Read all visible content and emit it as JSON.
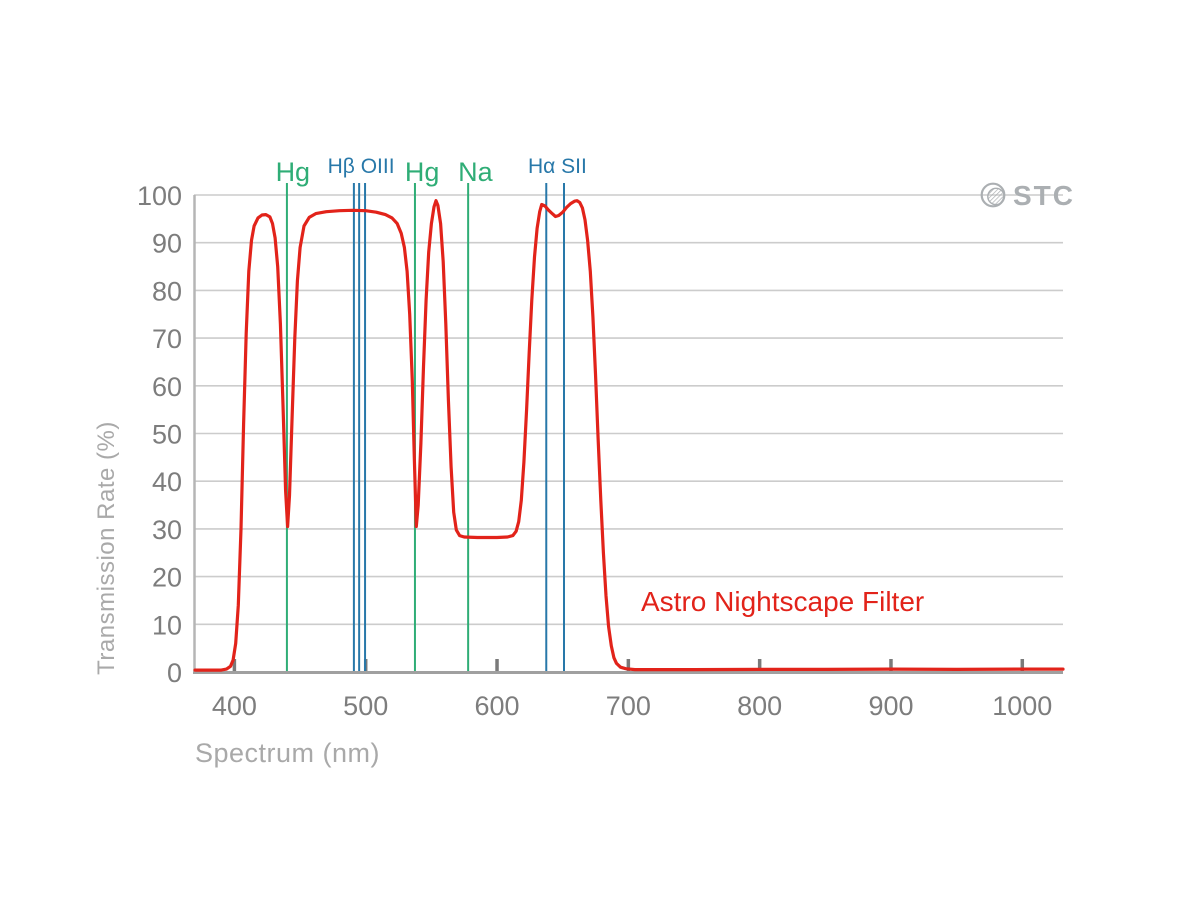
{
  "logo": {
    "text": "STC",
    "color": "#abafb2"
  },
  "annotation": {
    "text": "Astro Nightscape Filter",
    "color": "#e2231a"
  },
  "axis_style": {
    "grid_color": "#cccccc",
    "axis_line_color": "#a0a0a0",
    "tick_mark_color": "#7a7a7a",
    "tick_label_color": "#7d7d7d",
    "title_color": "#a9a9a9"
  },
  "chart_data": {
    "type": "line",
    "title": "",
    "xlabel": "Spectrum (nm)",
    "ylabel": "Transmission Rate (%)",
    "x_range": [
      370,
      1031
    ],
    "y_range": [
      0,
      100
    ],
    "x_ticks": [
      400,
      500,
      600,
      700,
      800,
      900,
      1000
    ],
    "y_ticks": [
      0,
      10,
      20,
      30,
      40,
      50,
      60,
      70,
      80,
      90,
      100
    ],
    "grid": "horizontal",
    "legend": "none",
    "series": [
      {
        "name": "Astro Nightscape Filter",
        "color": "#e2231a",
        "points": [
          [
            370,
            0.4
          ],
          [
            390,
            0.4
          ],
          [
            394,
            0.6
          ],
          [
            397,
            1.2
          ],
          [
            399,
            2.5
          ],
          [
            401,
            6
          ],
          [
            403,
            14
          ],
          [
            405,
            30
          ],
          [
            407,
            52
          ],
          [
            409,
            71
          ],
          [
            411,
            84
          ],
          [
            413,
            90.5
          ],
          [
            415,
            93.5
          ],
          [
            418,
            95.2
          ],
          [
            421,
            95.8
          ],
          [
            424,
            95.9
          ],
          [
            427,
            95.4
          ],
          [
            429,
            94
          ],
          [
            431,
            91
          ],
          [
            433,
            85
          ],
          [
            435,
            73
          ],
          [
            437,
            56
          ],
          [
            439,
            38
          ],
          [
            440.5,
            30.5
          ],
          [
            442,
            37
          ],
          [
            444,
            54
          ],
          [
            446,
            70
          ],
          [
            448,
            82
          ],
          [
            450,
            89
          ],
          [
            453,
            93.5
          ],
          [
            457,
            95.3
          ],
          [
            462,
            96.1
          ],
          [
            470,
            96.5
          ],
          [
            480,
            96.7
          ],
          [
            490,
            96.8
          ],
          [
            500,
            96.7
          ],
          [
            508,
            96.4
          ],
          [
            515,
            95.9
          ],
          [
            520,
            95.2
          ],
          [
            524,
            94
          ],
          [
            527,
            92
          ],
          [
            529.5,
            89
          ],
          [
            531.5,
            84
          ],
          [
            533.5,
            75
          ],
          [
            535.5,
            61
          ],
          [
            537,
            45
          ],
          [
            538.5,
            30.5
          ],
          [
            540,
            35
          ],
          [
            542,
            48
          ],
          [
            544,
            64
          ],
          [
            546,
            78
          ],
          [
            548,
            88
          ],
          [
            550,
            94
          ],
          [
            552,
            97.5
          ],
          [
            553.5,
            98.8
          ],
          [
            555,
            97.8
          ],
          [
            557,
            94
          ],
          [
            559,
            86
          ],
          [
            561,
            73
          ],
          [
            563,
            57
          ],
          [
            565,
            43
          ],
          [
            567,
            33.5
          ],
          [
            569,
            29.8
          ],
          [
            571.5,
            28.6
          ],
          [
            575,
            28.3
          ],
          [
            585,
            28.2
          ],
          [
            600,
            28.2
          ],
          [
            608,
            28.3
          ],
          [
            612,
            28.6
          ],
          [
            614.5,
            29.5
          ],
          [
            616.5,
            31.5
          ],
          [
            618.5,
            36
          ],
          [
            620.5,
            44
          ],
          [
            622.5,
            55
          ],
          [
            624.5,
            67
          ],
          [
            626.5,
            78
          ],
          [
            628.5,
            87
          ],
          [
            630.5,
            93
          ],
          [
            632.5,
            96.5
          ],
          [
            634,
            98
          ],
          [
            636.5,
            97.7
          ],
          [
            639,
            96.9
          ],
          [
            642,
            96.1
          ],
          [
            644.5,
            95.5
          ],
          [
            647,
            95.7
          ],
          [
            650,
            96.4
          ],
          [
            653,
            97.4
          ],
          [
            656,
            98.2
          ],
          [
            659,
            98.7
          ],
          [
            661,
            98.8
          ],
          [
            663,
            98.4
          ],
          [
            665,
            97.3
          ],
          [
            667,
            94.8
          ],
          [
            669,
            90.5
          ],
          [
            671,
            84
          ],
          [
            673,
            74.5
          ],
          [
            675,
            62.5
          ],
          [
            677,
            49
          ],
          [
            679,
            36
          ],
          [
            681,
            25
          ],
          [
            683,
            16
          ],
          [
            685,
            9.5
          ],
          [
            687,
            5.5
          ],
          [
            689,
            3
          ],
          [
            691,
            1.8
          ],
          [
            694,
            1
          ],
          [
            698,
            0.7
          ],
          [
            705,
            0.5
          ],
          [
            720,
            0.5
          ],
          [
            750,
            0.5
          ],
          [
            800,
            0.55
          ],
          [
            850,
            0.55
          ],
          [
            900,
            0.6
          ],
          [
            950,
            0.55
          ],
          [
            1000,
            0.6
          ],
          [
            1031,
            0.6
          ]
        ]
      }
    ],
    "spectral_lines": [
      {
        "label": "Hg",
        "nm": 440,
        "color": "#2fad76"
      },
      {
        "label": "Hβ",
        "nm": 491,
        "color": "#2878a9"
      },
      {
        "label": "OIII",
        "nm": 495,
        "color": "#2878a9"
      },
      {
        "label": "OIII",
        "nm": 499.5,
        "color": "#2878a9"
      },
      {
        "label": "Hg",
        "nm": 537.5,
        "color": "#2fad76"
      },
      {
        "label": "Na",
        "nm": 578,
        "color": "#2fad76"
      },
      {
        "label": "Hα",
        "nm": 637.5,
        "color": "#2878a9"
      },
      {
        "label": "SII",
        "nm": 651,
        "color": "#2878a9"
      }
    ],
    "line_labels": [
      {
        "text": "Hg",
        "nm": 444.5,
        "color": "#2fad76",
        "size": 27
      },
      {
        "text": "Hβ OIII",
        "nm": 496.5,
        "color": "#2878a9",
        "size": 21
      },
      {
        "text": "Hg",
        "nm": 543,
        "color": "#2fad76",
        "size": 27
      },
      {
        "text": "Na",
        "nm": 583.5,
        "color": "#2fad76",
        "size": 27
      },
      {
        "text": "Hα SII",
        "nm": 646,
        "color": "#2878a9",
        "size": 21
      }
    ]
  }
}
